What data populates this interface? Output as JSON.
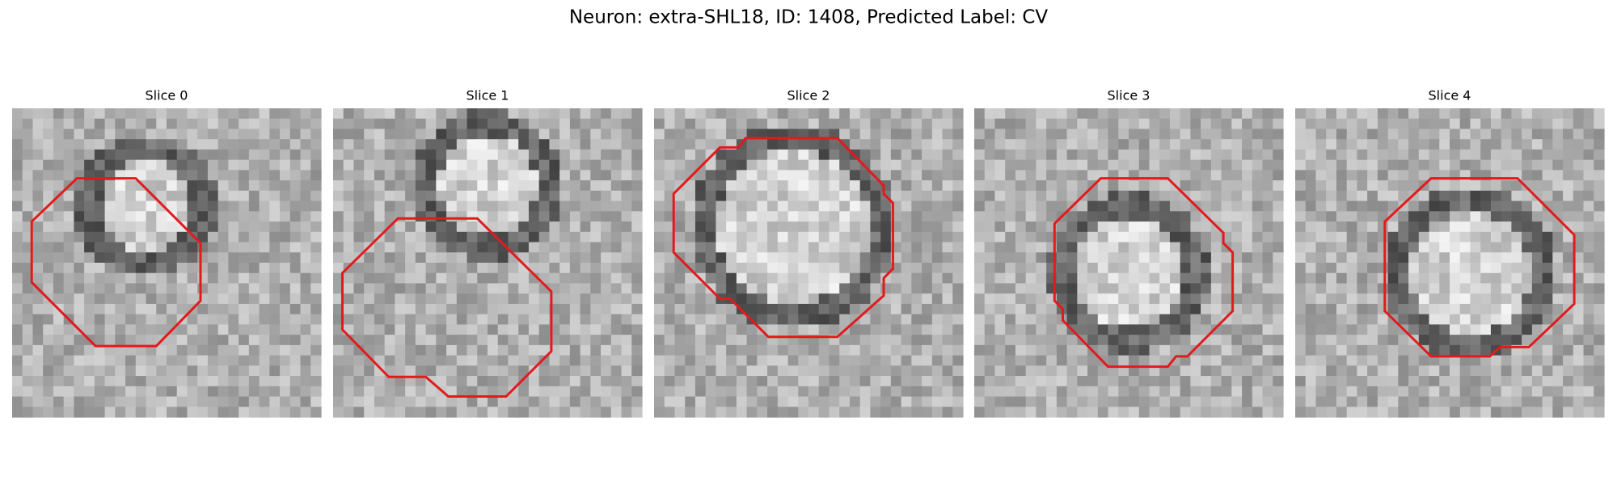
{
  "figure": {
    "title": "Neuron: extra-SHL18, ID: 1408, Predicted Label: CV",
    "panels": [
      {
        "title": "Slice 0"
      },
      {
        "title": "Slice 1"
      },
      {
        "title": "Slice 2"
      },
      {
        "title": "Slice 3"
      },
      {
        "title": "Slice 4"
      }
    ]
  }
}
